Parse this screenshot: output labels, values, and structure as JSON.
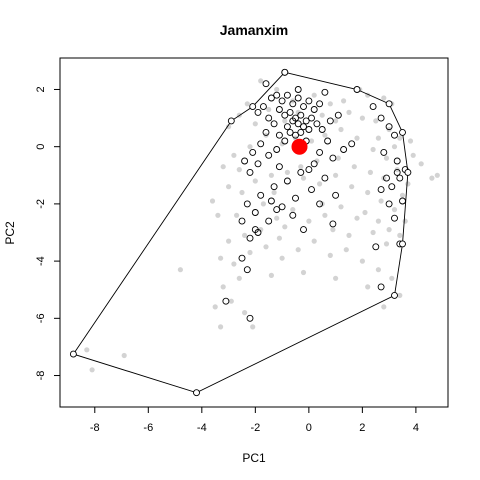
{
  "chart_data": {
    "type": "scatter",
    "title": "Jamanxim",
    "xlabel": "PC1",
    "ylabel": "PC2",
    "xlim": [
      -9.3,
      5.2
    ],
    "ylim": [
      -9.1,
      3.1
    ],
    "xticks": [
      -8,
      -6,
      -4,
      -2,
      0,
      2,
      4
    ],
    "yticks": [
      -8,
      -6,
      -4,
      -2,
      0,
      2
    ],
    "grid": false,
    "legend": "none",
    "colors": {
      "background_points": "#d3d3d3",
      "selected_outline": "#000000",
      "hull": "#000000",
      "centroid": "#ff0000"
    },
    "series": [
      {
        "role": "background",
        "style": "filled-gray-dots",
        "points": [
          [
            -3.0,
            0.7
          ],
          [
            -2.6,
            1.1
          ],
          [
            -2.3,
            1.5
          ],
          [
            -1.8,
            2.3
          ],
          [
            -1.2,
            2.0
          ],
          [
            -0.6,
            1.6
          ],
          [
            0.2,
            1.8
          ],
          [
            0.8,
            1.5
          ],
          [
            1.3,
            1.6
          ],
          [
            1.9,
            2.0
          ],
          [
            2.2,
            1.8
          ],
          [
            2.8,
            1.7
          ],
          [
            3.1,
            1.5
          ],
          [
            1.5,
            1.2
          ],
          [
            2.0,
            1.0
          ],
          [
            2.5,
            0.9
          ],
          [
            3.0,
            0.6
          ],
          [
            3.4,
            0.3
          ],
          [
            3.8,
            0.2
          ],
          [
            4.2,
            -0.6
          ],
          [
            4.6,
            -1.1
          ],
          [
            4.8,
            -1.0
          ],
          [
            3.7,
            -1.3
          ],
          [
            3.3,
            -0.8
          ],
          [
            2.9,
            -0.4
          ],
          [
            2.4,
            -0.1
          ],
          [
            1.8,
            0.3
          ],
          [
            1.2,
            0.6
          ],
          [
            0.6,
            0.4
          ],
          [
            0.1,
            0.2
          ],
          [
            -0.5,
            0.3
          ],
          [
            -1.0,
            0.1
          ],
          [
            -1.6,
            0.4
          ],
          [
            -2.2,
            0.0
          ],
          [
            -2.8,
            -0.3
          ],
          [
            -3.2,
            -0.7
          ],
          [
            -3.0,
            -1.4
          ],
          [
            -2.5,
            -1.6
          ],
          [
            -2.0,
            -1.2
          ],
          [
            -1.4,
            -1.0
          ],
          [
            -0.8,
            -0.9
          ],
          [
            -0.2,
            -1.1
          ],
          [
            0.4,
            -1.3
          ],
          [
            1.0,
            -1.0
          ],
          [
            1.6,
            -1.4
          ],
          [
            2.2,
            -1.6
          ],
          [
            2.7,
            -1.9
          ],
          [
            3.2,
            -2.2
          ],
          [
            3.6,
            -2.6
          ],
          [
            3.4,
            -3.1
          ],
          [
            2.9,
            -3.4
          ],
          [
            2.4,
            -3.0
          ],
          [
            1.8,
            -2.5
          ],
          [
            1.2,
            -2.1
          ],
          [
            0.6,
            -2.4
          ],
          [
            0.0,
            -2.6
          ],
          [
            -0.6,
            -2.2
          ],
          [
            -1.2,
            -2.5
          ],
          [
            -1.8,
            -2.9
          ],
          [
            -2.4,
            -3.1
          ],
          [
            -3.0,
            -3.3
          ],
          [
            -3.3,
            -3.9
          ],
          [
            -2.8,
            -4.1
          ],
          [
            -2.2,
            -3.7
          ],
          [
            -1.6,
            -3.5
          ],
          [
            -1.0,
            -3.9
          ],
          [
            -0.4,
            -3.6
          ],
          [
            0.2,
            -3.3
          ],
          [
            0.8,
            -3.8
          ],
          [
            1.4,
            -3.6
          ],
          [
            2.0,
            -4.0
          ],
          [
            2.6,
            -4.3
          ],
          [
            3.1,
            -4.6
          ],
          [
            3.4,
            -5.2
          ],
          [
            2.8,
            -5.6
          ],
          [
            2.2,
            -4.9
          ],
          [
            1.0,
            -4.6
          ],
          [
            -0.2,
            -4.4
          ],
          [
            -1.4,
            -4.5
          ],
          [
            -2.6,
            -4.6
          ],
          [
            -3.2,
            -4.9
          ],
          [
            -2.9,
            -5.4
          ],
          [
            -2.4,
            -5.8
          ],
          [
            -3.5,
            -5.6
          ],
          [
            -3.3,
            -6.3
          ],
          [
            -2.1,
            -6.3
          ],
          [
            -4.8,
            -4.3
          ],
          [
            -8.3,
            -7.1
          ],
          [
            -8.1,
            -7.8
          ],
          [
            -6.9,
            -7.3
          ],
          [
            -1.7,
            -2.0
          ],
          [
            -1.3,
            -1.6
          ],
          [
            -0.9,
            -2.8
          ],
          [
            0.9,
            -2.9
          ],
          [
            1.5,
            -3.1
          ],
          [
            2.1,
            -2.3
          ],
          [
            2.6,
            -2.6
          ],
          [
            3.0,
            -2.9
          ],
          [
            1.1,
            -0.4
          ],
          [
            1.7,
            -0.7
          ],
          [
            2.3,
            -0.9
          ],
          [
            2.8,
            -1.1
          ],
          [
            3.5,
            -1.7
          ],
          [
            0.3,
            -0.5
          ],
          [
            -0.3,
            -0.7
          ],
          [
            -2.6,
            -0.8
          ],
          [
            -2.0,
            0.8
          ],
          [
            -1.5,
            1.3
          ],
          [
            -0.9,
            0.9
          ],
          [
            -0.4,
            1.2
          ],
          [
            0.5,
            1.1
          ],
          [
            1.0,
            0.9
          ],
          [
            2.6,
            0.3
          ],
          [
            3.2,
            0.0
          ],
          [
            3.9,
            -0.3
          ],
          [
            -3.4,
            -2.4
          ],
          [
            -3.6,
            -1.9
          ],
          [
            -2.7,
            -2.4
          ],
          [
            -1.1,
            -3.2
          ],
          [
            0.5,
            -2.0
          ]
        ]
      },
      {
        "role": "selected",
        "style": "open-black-circles",
        "points": [
          [
            -0.9,
            2.6
          ],
          [
            -1.4,
            1.7
          ],
          [
            -1.2,
            1.8
          ],
          [
            -1.0,
            1.6
          ],
          [
            -0.8,
            1.8
          ],
          [
            -0.6,
            1.5
          ],
          [
            -0.4,
            1.7
          ],
          [
            -0.2,
            1.4
          ],
          [
            0.0,
            1.6
          ],
          [
            0.2,
            1.3
          ],
          [
            0.4,
            1.5
          ],
          [
            -1.1,
            1.3
          ],
          [
            -0.9,
            1.1
          ],
          [
            -0.7,
            1.2
          ],
          [
            -0.5,
            1.0
          ],
          [
            -0.3,
            1.1
          ],
          [
            -0.1,
            0.9
          ],
          [
            0.1,
            1.0
          ],
          [
            0.3,
            0.8
          ],
          [
            -0.6,
            0.9
          ],
          [
            -0.4,
            0.8
          ],
          [
            -0.2,
            0.7
          ],
          [
            0.0,
            0.6
          ],
          [
            -0.8,
            0.7
          ],
          [
            -0.7,
            0.5
          ],
          [
            -0.5,
            0.4
          ],
          [
            -0.3,
            0.5
          ],
          [
            -1.3,
            0.8
          ],
          [
            -1.5,
            1.0
          ],
          [
            -1.7,
            1.4
          ],
          [
            -1.9,
            1.2
          ],
          [
            -1.6,
            0.5
          ],
          [
            -1.8,
            0.1
          ],
          [
            -2.1,
            -0.2
          ],
          [
            -2.4,
            -0.5
          ],
          [
            -2.2,
            -0.9
          ],
          [
            -1.9,
            -0.6
          ],
          [
            -1.5,
            -0.3
          ],
          [
            -1.2,
            -0.1
          ],
          [
            -0.9,
            0.2
          ],
          [
            -0.1,
            0.2
          ],
          [
            0.5,
            0.6
          ],
          [
            0.8,
            0.9
          ],
          [
            1.1,
            1.1
          ],
          [
            0.7,
            0.2
          ],
          [
            0.4,
            -0.2
          ],
          [
            0.9,
            -0.4
          ],
          [
            1.3,
            -0.1
          ],
          [
            1.6,
            0.1
          ],
          [
            0.2,
            -0.6
          ],
          [
            -0.3,
            -0.9
          ],
          [
            -0.8,
            -1.2
          ],
          [
            -1.3,
            -1.4
          ],
          [
            -1.8,
            -1.7
          ],
          [
            -2.3,
            -2.0
          ],
          [
            -2.5,
            -2.6
          ],
          [
            -2.2,
            -3.2
          ],
          [
            -2.0,
            -2.3
          ],
          [
            -1.5,
            -2.6
          ],
          [
            -1.0,
            -2.1
          ],
          [
            -0.5,
            -1.8
          ],
          [
            0.1,
            -1.5
          ],
          [
            0.6,
            -1.1
          ],
          [
            1.0,
            -1.7
          ],
          [
            -1.1,
            -0.7
          ],
          [
            -1.4,
            -1.9
          ],
          [
            -2.0,
            -2.9
          ],
          [
            -1.2,
            -2.2
          ],
          [
            -0.6,
            -2.4
          ],
          [
            -0.2,
            -2.9
          ],
          [
            -1.9,
            -3.0
          ],
          [
            -2.5,
            -3.9
          ],
          [
            -2.3,
            -4.3
          ],
          [
            -3.1,
            -5.4
          ],
          [
            -2.2,
            -6.0
          ],
          [
            0.4,
            -2.0
          ],
          [
            0.9,
            -2.7
          ],
          [
            2.4,
            1.4
          ],
          [
            2.7,
            1.0
          ],
          [
            3.0,
            0.7
          ],
          [
            3.2,
            0.4
          ],
          [
            2.8,
            -0.2
          ],
          [
            3.3,
            -0.5
          ],
          [
            3.6,
            -0.8
          ],
          [
            3.4,
            -1.1
          ],
          [
            3.1,
            -1.4
          ],
          [
            2.7,
            -1.5
          ],
          [
            3.5,
            -1.9
          ],
          [
            3.0,
            -2.0
          ],
          [
            3.2,
            -2.5
          ],
          [
            3.4,
            -3.4
          ],
          [
            2.5,
            -3.5
          ],
          [
            2.7,
            -4.9
          ],
          [
            3.3,
            -0.9
          ],
          [
            2.9,
            -1.1
          ],
          [
            -1.6,
            2.2
          ],
          [
            -1.1,
            0.4
          ],
          [
            0.0,
            -0.8
          ],
          [
            -0.4,
            2.0
          ],
          [
            0.6,
            1.9
          ]
        ]
      }
    ],
    "hull": [
      [
        -0.9,
        2.6
      ],
      [
        1.8,
        2.0
      ],
      [
        3.0,
        1.5
      ],
      [
        3.5,
        0.5
      ],
      [
        3.7,
        -0.9
      ],
      [
        3.5,
        -3.4
      ],
      [
        3.2,
        -5.2
      ],
      [
        -4.2,
        -8.6
      ],
      [
        -8.8,
        -7.25
      ],
      [
        -2.9,
        0.9
      ],
      [
        -2.1,
        1.4
      ]
    ],
    "centroid": [
      -0.35,
      0.0
    ]
  }
}
